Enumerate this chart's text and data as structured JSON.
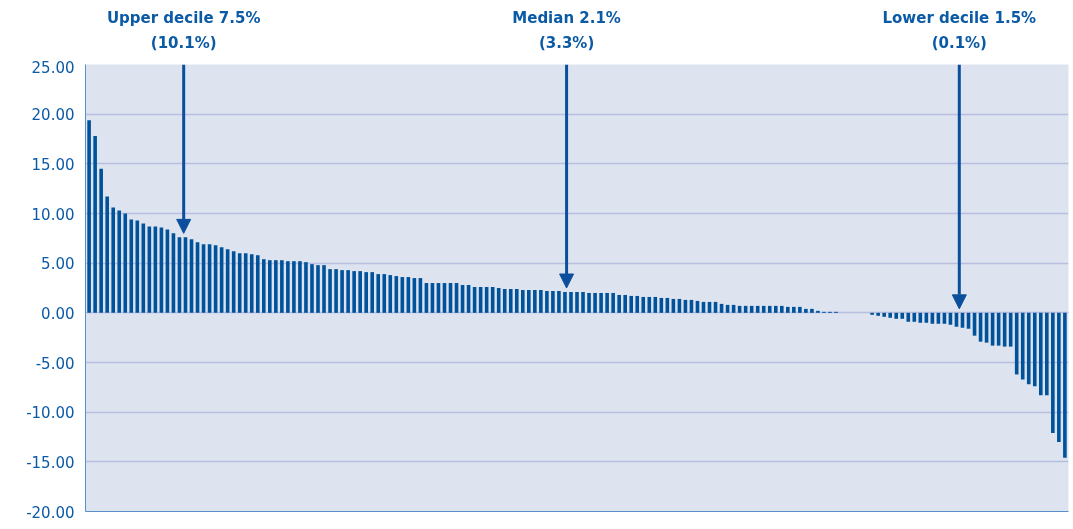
{
  "chart_data": {
    "type": "bar",
    "categories": [
      null,
      null,
      null,
      null,
      null,
      null,
      null,
      null,
      null,
      null,
      null,
      null,
      null,
      null,
      null,
      null,
      null,
      null,
      null,
      null,
      null,
      null,
      null,
      null,
      null,
      null,
      null,
      null,
      null,
      null,
      null,
      null,
      null,
      null,
      null,
      null,
      null,
      null,
      null,
      null,
      null,
      null,
      null,
      null,
      null,
      null,
      null,
      null,
      null,
      null,
      null,
      null,
      null,
      null,
      null,
      null,
      null,
      null,
      null,
      null,
      null,
      null,
      null,
      null,
      null,
      null,
      null,
      null,
      null,
      null,
      null,
      null,
      null,
      null,
      null,
      null,
      null,
      null,
      null,
      null,
      null,
      null,
      null,
      null,
      null,
      null,
      null,
      null,
      null,
      null,
      null,
      null,
      null,
      null,
      null,
      null,
      null,
      null,
      null,
      null,
      null,
      null,
      null,
      null,
      null,
      null,
      null,
      null,
      null,
      null,
      null,
      null,
      null,
      null,
      null,
      null,
      null,
      null,
      null,
      null,
      null,
      null,
      null,
      null,
      null,
      null,
      null,
      null,
      null,
      null,
      null,
      null,
      null,
      null,
      null,
      null,
      null,
      null,
      null,
      null,
      null,
      null,
      null,
      null,
      null,
      null,
      null,
      null,
      null,
      null,
      null,
      null,
      null,
      null,
      null,
      null,
      null,
      null,
      null,
      null,
      null,
      null,
      null
    ],
    "values": [
      19.4,
      17.8,
      14.5,
      11.7,
      10.6,
      10.3,
      10.0,
      9.4,
      9.3,
      9.0,
      8.7,
      8.7,
      8.6,
      8.4,
      8.0,
      7.6,
      7.6,
      7.4,
      7.1,
      6.9,
      6.9,
      6.8,
      6.6,
      6.4,
      6.2,
      6.0,
      6.0,
      5.9,
      5.8,
      5.4,
      5.3,
      5.3,
      5.3,
      5.2,
      5.2,
      5.2,
      5.1,
      4.9,
      4.8,
      4.8,
      4.4,
      4.4,
      4.3,
      4.3,
      4.2,
      4.2,
      4.1,
      4.1,
      3.9,
      3.9,
      3.8,
      3.7,
      3.6,
      3.6,
      3.5,
      3.5,
      3.0,
      3.0,
      3.0,
      3.0,
      3.0,
      3.0,
      2.8,
      2.8,
      2.6,
      2.6,
      2.6,
      2.6,
      2.5,
      2.4,
      2.4,
      2.4,
      2.3,
      2.3,
      2.3,
      2.3,
      2.2,
      2.2,
      2.2,
      2.1,
      2.1,
      2.1,
      2.1,
      2.0,
      2.0,
      2.0,
      2.0,
      2.0,
      1.8,
      1.8,
      1.7,
      1.7,
      1.6,
      1.6,
      1.6,
      1.5,
      1.5,
      1.4,
      1.4,
      1.3,
      1.3,
      1.2,
      1.1,
      1.1,
      1.1,
      0.9,
      0.8,
      0.8,
      0.7,
      0.7,
      0.7,
      0.7,
      0.7,
      0.7,
      0.7,
      0.7,
      0.6,
      0.6,
      0.6,
      0.4,
      0.4,
      0.2,
      0.1,
      0.1,
      0.1,
      0,
      0,
      0,
      0,
      0,
      -0.2,
      -0.3,
      -0.4,
      -0.5,
      -0.6,
      -0.6,
      -0.9,
      -0.9,
      -1.0,
      -1.0,
      -1.1,
      -1.1,
      -1.1,
      -1.2,
      -1.4,
      -1.5,
      -1.6,
      -2.3,
      -2.9,
      -3.0,
      -3.3,
      -3.3,
      -3.4,
      -3.4,
      -6.2,
      -6.7,
      -7.2,
      -7.4,
      -8.3,
      -8.3,
      -12.1,
      -13.0,
      -14.6
    ],
    "color": "#00539b",
    "ylim": [
      -20,
      25
    ],
    "yticks": [
      {
        "value": -20,
        "label": "-20.00"
      },
      {
        "value": -15,
        "label": "-15.00"
      },
      {
        "value": -10,
        "label": "-10.00"
      },
      {
        "value": -5,
        "label": "-5.00"
      },
      {
        "value": 0,
        "label": "0.00"
      },
      {
        "value": 5,
        "label": "5.00"
      },
      {
        "value": 10,
        "label": "10.00"
      },
      {
        "value": 15,
        "label": "15.00"
      },
      {
        "value": 20,
        "label": "20.00"
      },
      {
        "value": 25,
        "label": "25.00"
      }
    ],
    "grid": "y",
    "tick_labels": "y",
    "annotations": [
      "Upper decile 7.5%\n(10.1%)",
      "Median 2.1%\n(3.3%)",
      "Lower decile 1.5%\n(0.1%)"
    ]
  }
}
